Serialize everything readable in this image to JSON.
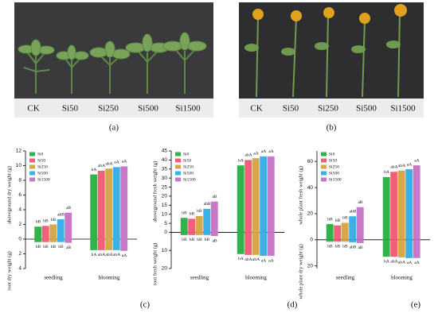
{
  "photos": [
    {
      "caption": "(a)",
      "labels": [
        "CK",
        "Si50",
        "Si250",
        "Si500",
        "Si1500"
      ]
    },
    {
      "caption": "(b)",
      "labels": [
        "CK",
        "Si50",
        "Si250",
        "Si500",
        "Si1500"
      ]
    }
  ],
  "chart_data": [
    {
      "type": "bar",
      "caption": "(c)",
      "y_label_top": "aboveground dry weight (g)",
      "y_label_bottom": "root dry weight (g)",
      "categories": [
        "seedling",
        "blooming"
      ],
      "ylim": [
        -4,
        12
      ],
      "yticks": [
        12,
        10,
        8,
        6,
        4,
        2,
        0,
        {
          "value": -2,
          "label": "2"
        },
        {
          "value": -4,
          "label": "4"
        }
      ],
      "series": [
        {
          "name": "Si0",
          "color": "#2fb34a",
          "values": [
            1.7,
            8.8
          ],
          "root_values": [
            -0.4,
            -1.5
          ],
          "letters": [
            "bB",
            "bA"
          ],
          "root_letters": [
            "bB",
            "bA"
          ]
        },
        {
          "name": "Si50",
          "color": "#f06079",
          "values": [
            1.8,
            9.3
          ],
          "root_values": [
            -0.4,
            -1.5
          ],
          "letters": [
            "bB",
            "abA"
          ],
          "root_letters": [
            "bB",
            "abA"
          ]
        },
        {
          "name": "Si250",
          "color": "#d4a84b",
          "values": [
            2.0,
            9.6
          ],
          "root_values": [
            -0.4,
            -1.5
          ],
          "letters": [
            "bB",
            "abA"
          ],
          "root_letters": [
            "bB",
            "abA"
          ]
        },
        {
          "name": "Si500",
          "color": "#3bb0e6",
          "values": [
            2.7,
            9.8
          ],
          "root_values": [
            -0.4,
            -1.5
          ],
          "letters": [
            "abB",
            "aA"
          ],
          "root_letters": [
            "bB",
            "abA"
          ]
        },
        {
          "name": "Si1500",
          "color": "#c779c8",
          "values": [
            3.6,
            9.9
          ],
          "root_values": [
            -0.5,
            -1.6
          ],
          "letters": [
            "aB",
            "aA"
          ],
          "root_letters": [
            "aB",
            "aA"
          ]
        }
      ]
    },
    {
      "type": "bar",
      "caption": "(d)",
      "y_label_top": "aboveground fresh weight (g)",
      "y_label_bottom": "root fresh weight (g)",
      "categories": [
        "seedling",
        "blooming"
      ],
      "ylim": [
        -20,
        45
      ],
      "yticks": [
        45,
        40,
        35,
        30,
        25,
        20,
        15,
        10,
        5,
        0,
        {
          "value": -10,
          "label": "10"
        },
        {
          "value": -20,
          "label": "20"
        }
      ],
      "series": [
        {
          "name": "Si0",
          "color": "#2fb34a",
          "values": [
            8,
            37
          ],
          "root_values": [
            -1.5,
            -12
          ],
          "letters": [
            "bB",
            "bA"
          ],
          "root_letters": [
            "bB",
            "bA"
          ]
        },
        {
          "name": "Si50",
          "color": "#f06079",
          "values": [
            7.5,
            40
          ],
          "root_values": [
            -1.5,
            -12.5
          ],
          "letters": [
            "bB",
            "abA"
          ],
          "root_letters": [
            "bB",
            "abA"
          ]
        },
        {
          "name": "Si250",
          "color": "#d4a84b",
          "values": [
            9,
            41
          ],
          "root_values": [
            -1.5,
            -12.5
          ],
          "letters": [
            "bB",
            "aA"
          ],
          "root_letters": [
            "bB",
            "abA"
          ]
        },
        {
          "name": "Si500",
          "color": "#3bb0e6",
          "values": [
            13,
            42
          ],
          "root_values": [
            -1.5,
            -13
          ],
          "letters": [
            "abB",
            "aA"
          ],
          "root_letters": [
            "bB",
            "aA"
          ]
        },
        {
          "name": "Si1500",
          "color": "#c779c8",
          "values": [
            17,
            42
          ],
          "root_values": [
            -2,
            -13
          ],
          "letters": [
            "aB",
            "aA"
          ],
          "root_letters": [
            "aB",
            "aA"
          ]
        }
      ]
    },
    {
      "type": "bar",
      "caption": "(e)",
      "y_label_top": "whole plant fresh weight (g)",
      "y_label_bottom": "whole plant dry weight (g)",
      "categories": [
        "seedling",
        "blooming"
      ],
      "ylim": [
        -22,
        68
      ],
      "yticks": [
        60,
        40,
        20,
        0,
        {
          "value": -20,
          "label": "20"
        }
      ],
      "series": [
        {
          "name": "Si0",
          "color": "#2fb34a",
          "values": [
            12,
            48
          ],
          "root_values": [
            -1.5,
            -13
          ],
          "letters": [
            "bB",
            "bA"
          ],
          "root_letters": [
            "bB",
            "bA"
          ]
        },
        {
          "name": "Si50",
          "color": "#f06079",
          "values": [
            11,
            52
          ],
          "root_values": [
            -1.5,
            -13
          ],
          "letters": [
            "bB",
            "abA"
          ],
          "root_letters": [
            "bB",
            "abA"
          ]
        },
        {
          "name": "Si250",
          "color": "#d4a84b",
          "values": [
            13,
            53
          ],
          "root_values": [
            -1.5,
            -13.5
          ],
          "letters": [
            "bB",
            "abA"
          ],
          "root_letters": [
            "bB",
            "abA"
          ]
        },
        {
          "name": "Si500",
          "color": "#3bb0e6",
          "values": [
            18,
            54
          ],
          "root_values": [
            -2,
            -14
          ],
          "letters": [
            "abB",
            "aA"
          ],
          "root_letters": [
            "abB",
            "aA"
          ]
        },
        {
          "name": "Si1500",
          "color": "#c779c8",
          "values": [
            25,
            57
          ],
          "root_values": [
            -2.5,
            -14
          ],
          "letters": [
            "aB",
            "aA"
          ],
          "root_letters": [
            "aB",
            "aA"
          ]
        }
      ]
    }
  ]
}
